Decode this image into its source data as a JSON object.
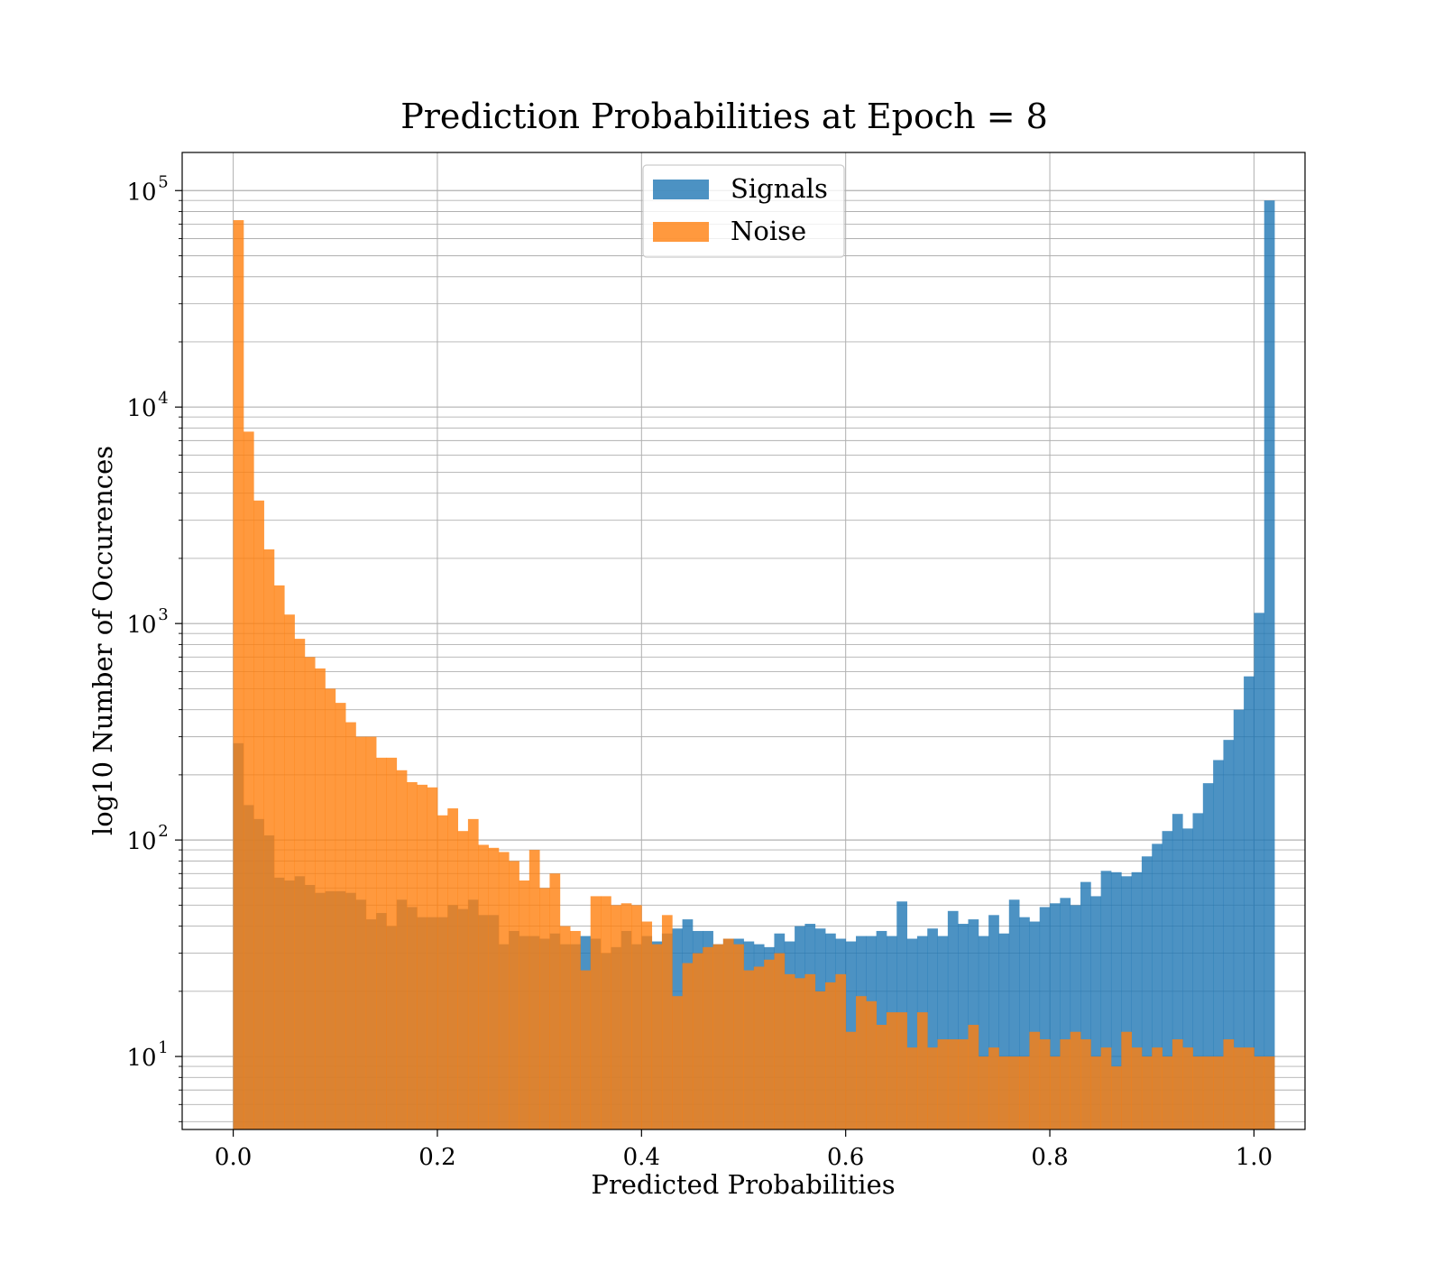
{
  "chart_data": {
    "type": "bar",
    "title": "Prediction Probabilities at Epoch = 8",
    "xlabel": "Predicted Probabilities",
    "ylabel": "log10 Number of Occurences",
    "yscale": "log",
    "xlim": [
      -0.05,
      1.05
    ],
    "ylim": [
      4.6,
      150000
    ],
    "grid": true,
    "legend_position": "top-center",
    "xticks": [
      0.0,
      0.2,
      0.4,
      0.6,
      0.8,
      1.0
    ],
    "xtick_labels": [
      "0.0",
      "0.2",
      "0.4",
      "0.6",
      "0.8",
      "1.0"
    ],
    "yticks": [
      10,
      100,
      1000,
      10000,
      100000
    ],
    "ytick_labels": [
      {
        "base": "10",
        "exp": "1"
      },
      {
        "base": "10",
        "exp": "2"
      },
      {
        "base": "10",
        "exp": "3"
      },
      {
        "base": "10",
        "exp": "4"
      },
      {
        "base": "10",
        "exp": "5"
      }
    ],
    "bin_start": 0.0,
    "bin_width": 0.01,
    "series": [
      {
        "name": "Signals",
        "color": "#1f77b4",
        "opacity": 0.8,
        "values": [
          280,
          145,
          125,
          105,
          67,
          65,
          68,
          62,
          57,
          58,
          58,
          57,
          53,
          43,
          46,
          40,
          53,
          49,
          44,
          44,
          44,
          50,
          48,
          53,
          45,
          45,
          33,
          38,
          36,
          36,
          35,
          37,
          33,
          33,
          36,
          35,
          30,
          32,
          38,
          33,
          36,
          34,
          37,
          39,
          43,
          38,
          38,
          33,
          35,
          35,
          34,
          33,
          32,
          37,
          34,
          40,
          41,
          39,
          37,
          35,
          34,
          36,
          36,
          38,
          36,
          52,
          35,
          36,
          39,
          36,
          47,
          41,
          43,
          36,
          45,
          37,
          53,
          44,
          42,
          49,
          51,
          54,
          50,
          64,
          55,
          72,
          71,
          68,
          71,
          84,
          96,
          110,
          132,
          113,
          133,
          183,
          234,
          290,
          400,
          570,
          1120,
          90000
        ]
      },
      {
        "name": "Noise",
        "color": "#ff7f0e",
        "opacity": 0.8,
        "values": [
          73000,
          7700,
          3700,
          2200,
          1500,
          1100,
          850,
          700,
          620,
          500,
          430,
          350,
          300,
          300,
          240,
          240,
          210,
          185,
          180,
          175,
          130,
          140,
          110,
          125,
          95,
          92,
          88,
          80,
          65,
          90,
          60,
          70,
          40,
          38,
          25,
          55,
          55,
          50,
          51,
          50,
          42,
          33,
          45,
          19,
          27,
          30,
          32,
          33,
          35,
          33,
          25,
          26,
          28,
          30,
          24,
          23,
          24,
          20,
          22,
          24,
          13,
          19,
          18,
          14,
          16,
          16,
          11,
          16,
          11,
          12,
          12,
          12,
          14,
          10,
          11,
          10,
          10,
          10,
          13,
          12,
          10,
          12,
          13,
          12,
          10,
          11,
          9,
          13,
          11,
          10,
          11,
          10,
          12,
          11,
          10,
          10,
          10,
          12,
          11,
          11,
          10,
          10
        ]
      }
    ]
  }
}
